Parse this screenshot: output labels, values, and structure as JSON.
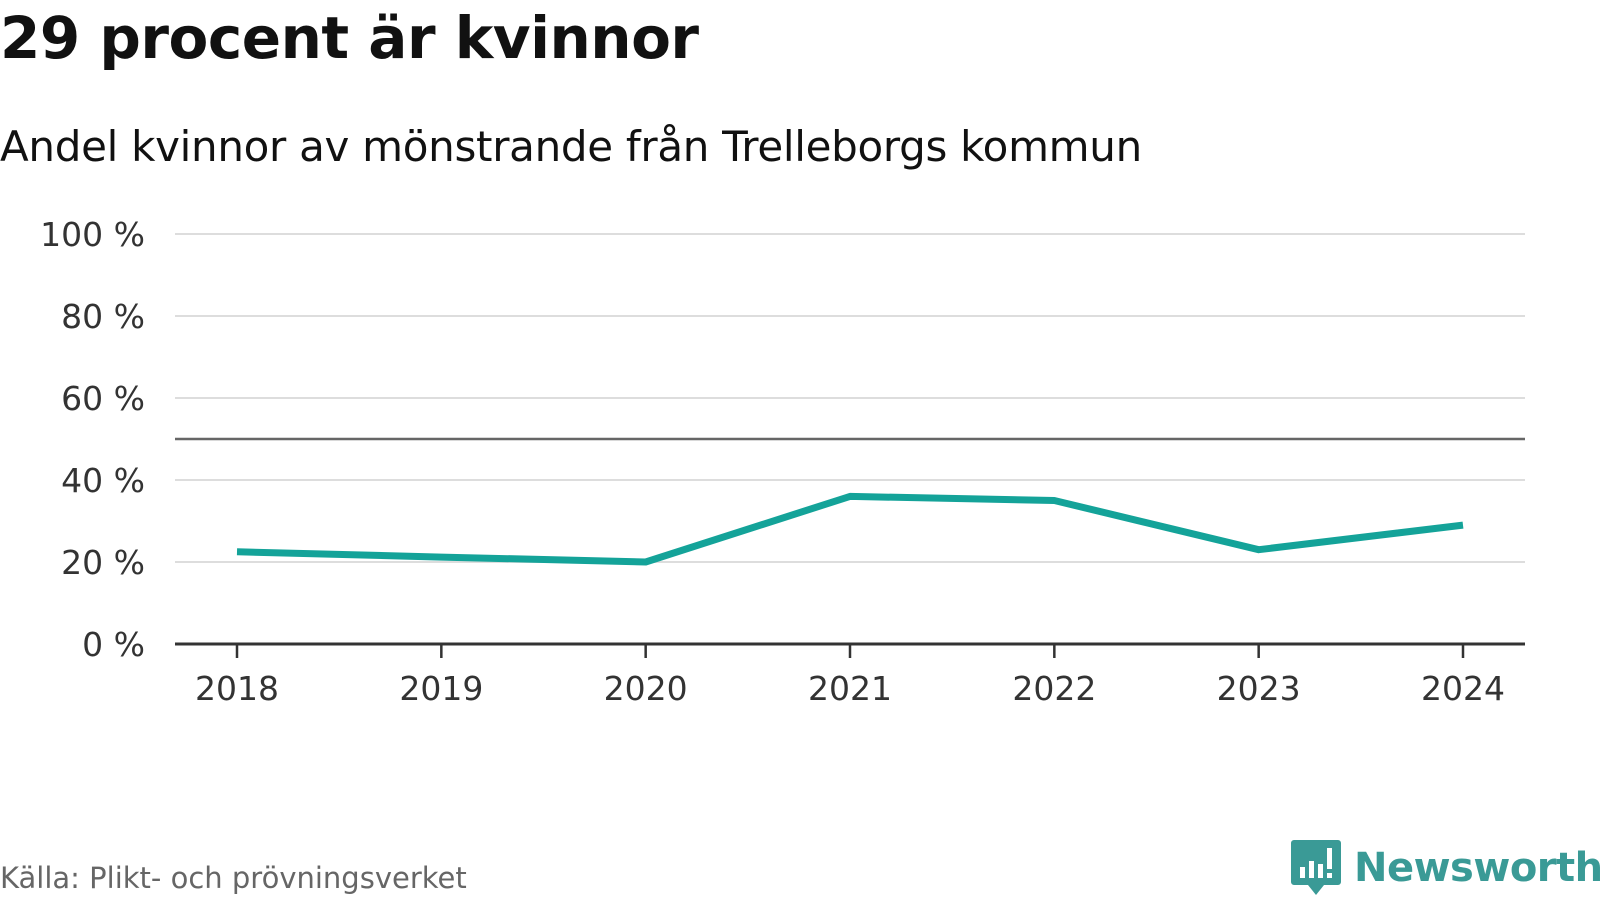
{
  "header": {
    "title": "29 procent är kvinnor",
    "subtitle": "Andel kvinnor av mönstrande från Trelleborgs kommun"
  },
  "footer": {
    "source": "Källa: Plikt- och prövningsverket",
    "brand": "Newsworthy",
    "brand_icon": "bar-chart-speech-bubble-icon"
  },
  "colors": {
    "line": "#14a399",
    "grid": "#dddddd",
    "reference": "#666666",
    "axis": "#333333",
    "brand": "#3a9a96"
  },
  "chart_data": {
    "type": "line",
    "x": [
      "2018",
      "2019",
      "2020",
      "2021",
      "2022",
      "2023",
      "2024"
    ],
    "series": [
      {
        "values": [
          22.5,
          21.2,
          20,
          36,
          35,
          23,
          29
        ]
      }
    ],
    "ylim": [
      0,
      100
    ],
    "yticks": [
      0,
      20,
      40,
      60,
      80,
      100
    ],
    "ytick_labels": [
      "0 %",
      "20 %",
      "40 %",
      "60 %",
      "80 %",
      "100 %"
    ],
    "reference_line": 50,
    "grid": true,
    "legend": "none"
  }
}
